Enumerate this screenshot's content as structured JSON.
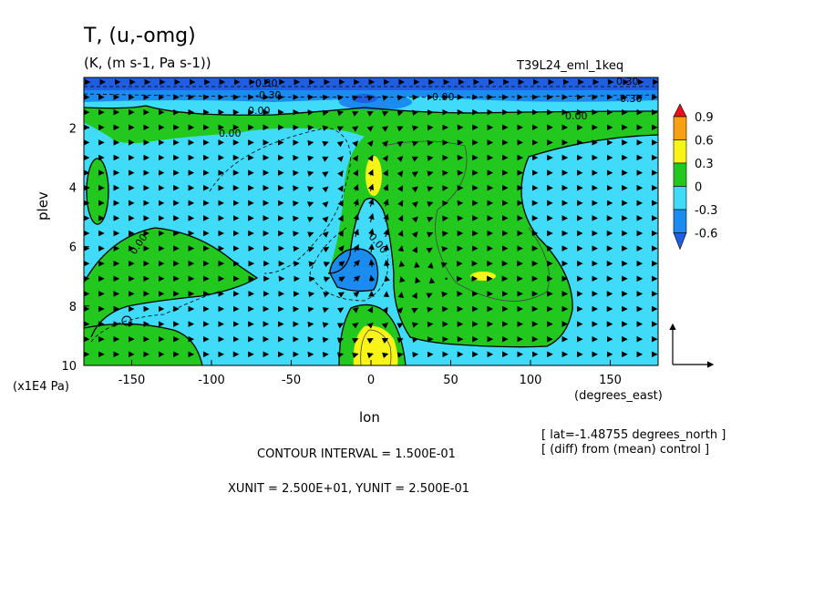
{
  "chart_data": {
    "type": "contour",
    "title": "T, (u,-omg)",
    "subtitle": "(K, (m s-1, Pa s-1))",
    "run_label": "T39L24_eml_1keq",
    "xlabel": "lon",
    "xunit_label": "(degrees_east)",
    "ylabel": "plev",
    "yunit_label": "(x1E4 Pa)",
    "xlim": [
      -180,
      180
    ],
    "ylim": [
      10,
      0.3
    ],
    "x_ticks": [
      "-150",
      "-100",
      "-50",
      "0",
      "50",
      "100",
      "150"
    ],
    "x_tick_values": [
      -150,
      -100,
      -50,
      0,
      50,
      100,
      150
    ],
    "y_ticks": [
      "2",
      "4",
      "6",
      "8",
      "10"
    ],
    "y_tick_values": [
      2,
      4,
      6,
      8,
      10
    ],
    "colorbar_levels": [
      "0.9",
      "0.6",
      "0.3",
      "0",
      "-0.3",
      "-0.6"
    ],
    "colorbar_colors": [
      "#e8101b",
      "#f7a013",
      "#f7f416",
      "#22c81e",
      "#3fdbf9",
      "#1a8cf0",
      "#1f5ee0"
    ],
    "contour_labels": [
      "0.30",
      "-0.30",
      "0.00",
      "0.00",
      "-0.00",
      "0.00",
      "0.00",
      "0.00",
      "0.30",
      "-0.30"
    ],
    "info": {
      "lat": "[ lat=-1.48755 degrees_north ]",
      "diff": "[ (diff) from (mean) control ]",
      "contour_interval": "CONTOUR INTERVAL = 1.500E-01",
      "units": "XUNIT = 2.500E+01, YUNIT = 2.500E-01"
    }
  }
}
